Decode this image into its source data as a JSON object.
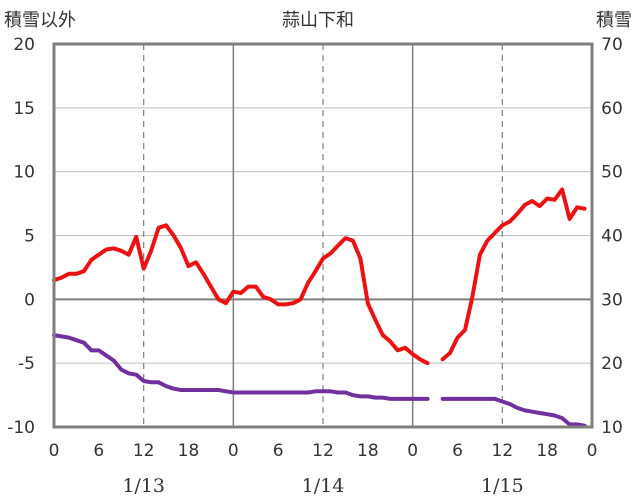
{
  "chart_data": {
    "type": "line",
    "title": "蒜山下和",
    "left_axis_label": "積雪以外",
    "right_axis_label": "積雪",
    "ylim_left": [
      -10,
      20
    ],
    "yticks_left": [
      "20",
      "15",
      "10",
      "5",
      "0",
      "-5",
      "-10"
    ],
    "ylim_right": [
      10,
      70
    ],
    "yticks_right": [
      "70",
      "60",
      "50",
      "40",
      "30",
      "20",
      "10"
    ],
    "xlim_hours": [
      0,
      72
    ],
    "xtick_labels": [
      "0",
      "6",
      "12",
      "18",
      "0",
      "6",
      "12",
      "18",
      "0",
      "6",
      "12",
      "18",
      "0"
    ],
    "date_labels": [
      {
        "label": "1/13",
        "hour": 12
      },
      {
        "label": "1/14",
        "hour": 36
      },
      {
        "label": "1/15",
        "hour": 60
      }
    ],
    "grid": {
      "major_vertical_hours": [
        24,
        48
      ],
      "minor_vertical_hours": [
        12,
        36,
        60
      ],
      "zero_line": true
    },
    "series": [
      {
        "color": "#ee1111",
        "segments": [
          [
            [
              0,
              1.5
            ],
            [
              1,
              1.7
            ],
            [
              2,
              2.0
            ],
            [
              3,
              2.0
            ],
            [
              4,
              2.2
            ],
            [
              5,
              3.1
            ],
            [
              6,
              3.5
            ],
            [
              7,
              3.9
            ],
            [
              8,
              4.0
            ],
            [
              9,
              3.8
            ],
            [
              10,
              3.5
            ],
            [
              11,
              4.9
            ],
            [
              12,
              2.4
            ],
            [
              13,
              3.8
            ],
            [
              14,
              5.6
            ],
            [
              15,
              5.8
            ],
            [
              16,
              5.0
            ],
            [
              17,
              4.0
            ],
            [
              18,
              2.6
            ],
            [
              19,
              2.9
            ],
            [
              20,
              2.0
            ],
            [
              21,
              1.0
            ],
            [
              22,
              0.0
            ],
            [
              23,
              -0.3
            ],
            [
              24,
              0.6
            ],
            [
              25,
              0.5
            ],
            [
              26,
              1.0
            ],
            [
              27,
              1.0
            ],
            [
              28,
              0.2
            ],
            [
              29,
              0.0
            ],
            [
              30,
              -0.4
            ],
            [
              31,
              -0.4
            ],
            [
              32,
              -0.3
            ],
            [
              33,
              0.0
            ],
            [
              34,
              1.3
            ],
            [
              35,
              2.2
            ],
            [
              36,
              3.2
            ],
            [
              37,
              3.6
            ],
            [
              38,
              4.2
            ],
            [
              39,
              4.8
            ],
            [
              40,
              4.6
            ],
            [
              41,
              3.2
            ],
            [
              42,
              -0.3
            ],
            [
              43,
              -1.6
            ],
            [
              44,
              -2.8
            ],
            [
              45,
              -3.3
            ],
            [
              46,
              -4.0
            ],
            [
              47,
              -3.8
            ],
            [
              48,
              -4.3
            ],
            [
              49,
              -4.7
            ],
            [
              50,
              -5.0
            ]
          ],
          [
            [
              52,
              -4.7
            ],
            [
              53,
              -4.2
            ],
            [
              54,
              -3.0
            ],
            [
              55,
              -2.4
            ],
            [
              56,
              0.2
            ],
            [
              57,
              3.5
            ],
            [
              58,
              4.6
            ],
            [
              59,
              5.2
            ],
            [
              60,
              5.8
            ],
            [
              61,
              6.1
            ],
            [
              62,
              6.7
            ],
            [
              63,
              7.4
            ],
            [
              64,
              7.7
            ],
            [
              65,
              7.3
            ],
            [
              66,
              7.9
            ],
            [
              67,
              7.8
            ],
            [
              68,
              8.6
            ],
            [
              69,
              6.3
            ],
            [
              70,
              7.2
            ],
            [
              71,
              7.1
            ]
          ]
        ]
      },
      {
        "color": "#7030a0",
        "segments": [
          [
            [
              0,
              -2.8
            ],
            [
              1,
              -2.9
            ],
            [
              2,
              -3.0
            ],
            [
              3,
              -3.2
            ],
            [
              4,
              -3.4
            ],
            [
              5,
              -4.0
            ],
            [
              6,
              -4.0
            ],
            [
              7,
              -4.4
            ],
            [
              8,
              -4.8
            ],
            [
              9,
              -5.5
            ],
            [
              10,
              -5.8
            ],
            [
              11,
              -5.9
            ],
            [
              12,
              -6.4
            ],
            [
              13,
              -6.5
            ],
            [
              14,
              -6.5
            ],
            [
              15,
              -6.8
            ],
            [
              16,
              -7.0
            ],
            [
              17,
              -7.1
            ],
            [
              18,
              -7.1
            ],
            [
              19,
              -7.1
            ],
            [
              20,
              -7.1
            ],
            [
              21,
              -7.1
            ],
            [
              22,
              -7.1
            ],
            [
              23,
              -7.2
            ],
            [
              24,
              -7.3
            ],
            [
              25,
              -7.3
            ],
            [
              26,
              -7.3
            ],
            [
              27,
              -7.3
            ],
            [
              28,
              -7.3
            ],
            [
              29,
              -7.3
            ],
            [
              30,
              -7.3
            ],
            [
              31,
              -7.3
            ],
            [
              32,
              -7.3
            ],
            [
              33,
              -7.3
            ],
            [
              34,
              -7.3
            ],
            [
              35,
              -7.2
            ],
            [
              36,
              -7.2
            ],
            [
              37,
              -7.2
            ],
            [
              38,
              -7.3
            ],
            [
              39,
              -7.3
            ],
            [
              40,
              -7.5
            ],
            [
              41,
              -7.6
            ],
            [
              42,
              -7.6
            ],
            [
              43,
              -7.7
            ],
            [
              44,
              -7.7
            ],
            [
              45,
              -7.8
            ],
            [
              46,
              -7.8
            ],
            [
              47,
              -7.8
            ],
            [
              48,
              -7.8
            ],
            [
              49,
              -7.8
            ],
            [
              50,
              -7.8
            ]
          ],
          [
            [
              52,
              -7.8
            ],
            [
              53,
              -7.8
            ],
            [
              54,
              -7.8
            ],
            [
              55,
              -7.8
            ],
            [
              56,
              -7.8
            ],
            [
              57,
              -7.8
            ],
            [
              58,
              -7.8
            ],
            [
              59,
              -7.8
            ],
            [
              60,
              -8.0
            ],
            [
              61,
              -8.2
            ],
            [
              62,
              -8.5
            ],
            [
              63,
              -8.7
            ],
            [
              64,
              -8.8
            ],
            [
              65,
              -8.9
            ],
            [
              66,
              -9.0
            ],
            [
              67,
              -9.1
            ],
            [
              68,
              -9.3
            ],
            [
              69,
              -9.8
            ],
            [
              70,
              -9.8
            ],
            [
              71,
              -9.9
            ]
          ]
        ]
      }
    ]
  }
}
